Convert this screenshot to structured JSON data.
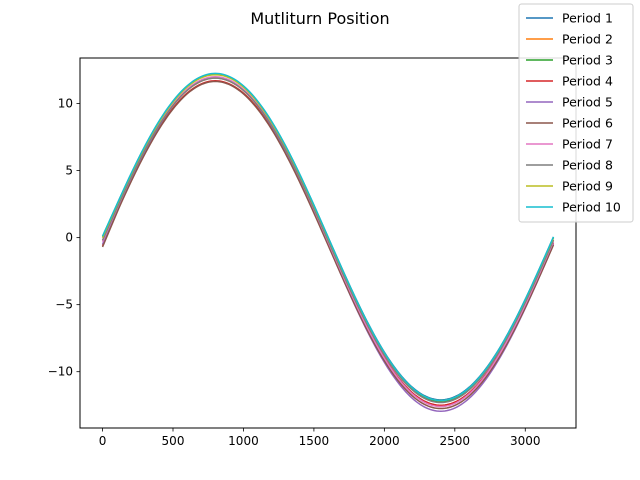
{
  "chart_data": {
    "type": "line",
    "title": "Mutliturn Position",
    "xlabel": "",
    "ylabel": "",
    "xlim": [
      -160,
      3360
    ],
    "ylim": [
      -14.2,
      13.4
    ],
    "xticks": [
      0,
      500,
      1000,
      1500,
      2000,
      2500,
      3000
    ],
    "yticks": [
      -10,
      -5,
      0,
      5,
      10
    ],
    "xtick_labels": [
      "0",
      "500",
      "1000",
      "1500",
      "2000",
      "2500",
      "3000"
    ],
    "ytick_labels": [
      "−10",
      "−5",
      "0",
      "5",
      "10"
    ],
    "grid": false,
    "legend_position": "top-right",
    "x_range": [
      0,
      3200
    ],
    "series": [
      {
        "name": "Period 1",
        "color": "#1f77b4",
        "offset": 0.05,
        "amplitude": 12.15,
        "start": 0.0
      },
      {
        "name": "Period 2",
        "color": "#ff7f0e",
        "offset": -0.15,
        "amplitude": 12.05,
        "start": -0.2
      },
      {
        "name": "Period 3",
        "color": "#2ca02c",
        "offset": 0.0,
        "amplitude": 12.2,
        "start": 0.1
      },
      {
        "name": "Period 4",
        "color": "#d62728",
        "offset": -0.4,
        "amplitude": 12.1,
        "start": -0.6
      },
      {
        "name": "Period 5",
        "color": "#9467bd",
        "offset": -0.5,
        "amplitude": 12.45,
        "start": -0.5
      },
      {
        "name": "Period 6",
        "color": "#8c564b",
        "offset": -0.55,
        "amplitude": 12.2,
        "start": -0.7
      },
      {
        "name": "Period 7",
        "color": "#e377c2",
        "offset": -0.3,
        "amplitude": 12.3,
        "start": -0.3
      },
      {
        "name": "Period 8",
        "color": "#7f7f7f",
        "offset": -0.2,
        "amplitude": 12.1,
        "start": -0.2
      },
      {
        "name": "Period 9",
        "color": "#bcbd22",
        "offset": 0.0,
        "amplitude": 12.15,
        "start": 0.0
      },
      {
        "name": "Period 10",
        "color": "#17becf",
        "offset": 0.05,
        "amplitude": 12.2,
        "start": 0.1
      }
    ]
  }
}
